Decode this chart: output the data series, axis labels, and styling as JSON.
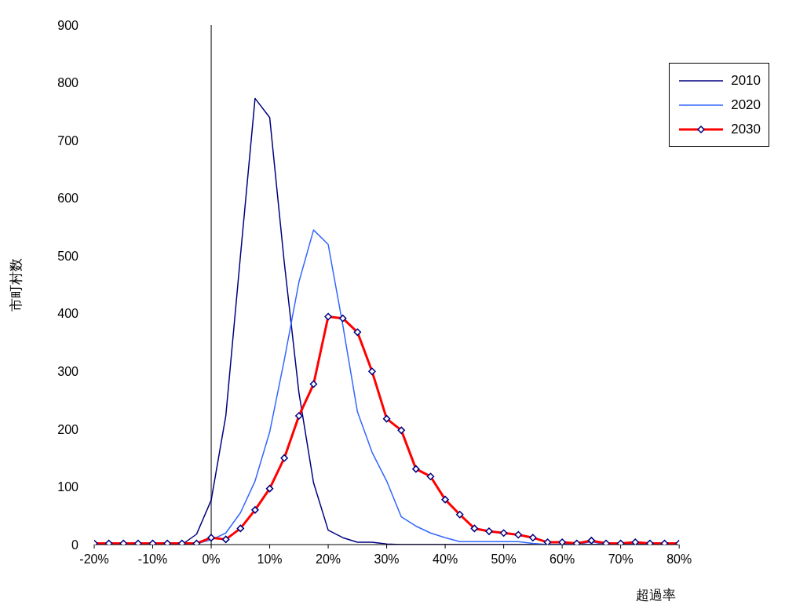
{
  "chart_data": {
    "type": "line",
    "xlabel": "超過率",
    "ylabel": "市町村数",
    "x": [
      -20,
      -17.5,
      -15,
      -12.5,
      -10,
      -7.5,
      -5,
      -2.5,
      0,
      2.5,
      5,
      7.5,
      10,
      12.5,
      15,
      17.5,
      20,
      22.5,
      25,
      27.5,
      30,
      32.5,
      35,
      37.5,
      40,
      42.5,
      45,
      47.5,
      50,
      52.5,
      55,
      57.5,
      60,
      62.5,
      65,
      67.5,
      70,
      72.5,
      75,
      77.5,
      80
    ],
    "series": [
      {
        "name": "2010",
        "color": "#000080",
        "marker": "none",
        "values": [
          0,
          0,
          0,
          0,
          0,
          0,
          0,
          18,
          77,
          223,
          500,
          773,
          740,
          488,
          263,
          107,
          25,
          12,
          4,
          4,
          1,
          0,
          0,
          0,
          0,
          0,
          0,
          0,
          0,
          0,
          0,
          0,
          0,
          0,
          0,
          0,
          0,
          0,
          0,
          0,
          0
        ]
      },
      {
        "name": "2020",
        "color": "#3366ff",
        "marker": "none",
        "values": [
          null,
          null,
          null,
          null,
          null,
          null,
          0,
          2,
          8,
          20,
          55,
          110,
          195,
          320,
          455,
          545,
          520,
          380,
          230,
          160,
          110,
          48,
          32,
          20,
          12,
          5,
          5,
          5,
          5,
          5,
          2,
          0,
          0,
          0,
          5,
          0,
          0,
          null,
          null,
          null,
          null
        ]
      },
      {
        "name": "2030",
        "color": "#ff0000",
        "marker": "diamond",
        "values": [
          2,
          2,
          2,
          2,
          2,
          2,
          2,
          2,
          12,
          9,
          28,
          60,
          97,
          150,
          223,
          278,
          395,
          392,
          368,
          300,
          218,
          198,
          131,
          118,
          78,
          52,
          28,
          23,
          20,
          17,
          12,
          4,
          4,
          2,
          7,
          2,
          2,
          4,
          2,
          2,
          2
        ]
      }
    ],
    "xlim": [
      -20,
      80
    ],
    "xticks": [
      {
        "value": -20,
        "label": "-20%"
      },
      {
        "value": -10,
        "label": "-10%"
      },
      {
        "value": 0,
        "label": "0%"
      },
      {
        "value": 10,
        "label": "10%"
      },
      {
        "value": 20,
        "label": "20%"
      },
      {
        "value": 30,
        "label": "30%"
      },
      {
        "value": 40,
        "label": "40%"
      },
      {
        "value": 50,
        "label": "50%"
      },
      {
        "value": 60,
        "label": "60%"
      },
      {
        "value": 70,
        "label": "70%"
      },
      {
        "value": 80,
        "label": "80%"
      }
    ],
    "ylim": [
      0,
      900
    ],
    "yticks": [
      0,
      100,
      200,
      300,
      400,
      500,
      600,
      700,
      800,
      900
    ],
    "ref_lines": [
      {
        "axis": "x",
        "value": 0
      }
    ],
    "grid": false,
    "legend": "top right"
  }
}
